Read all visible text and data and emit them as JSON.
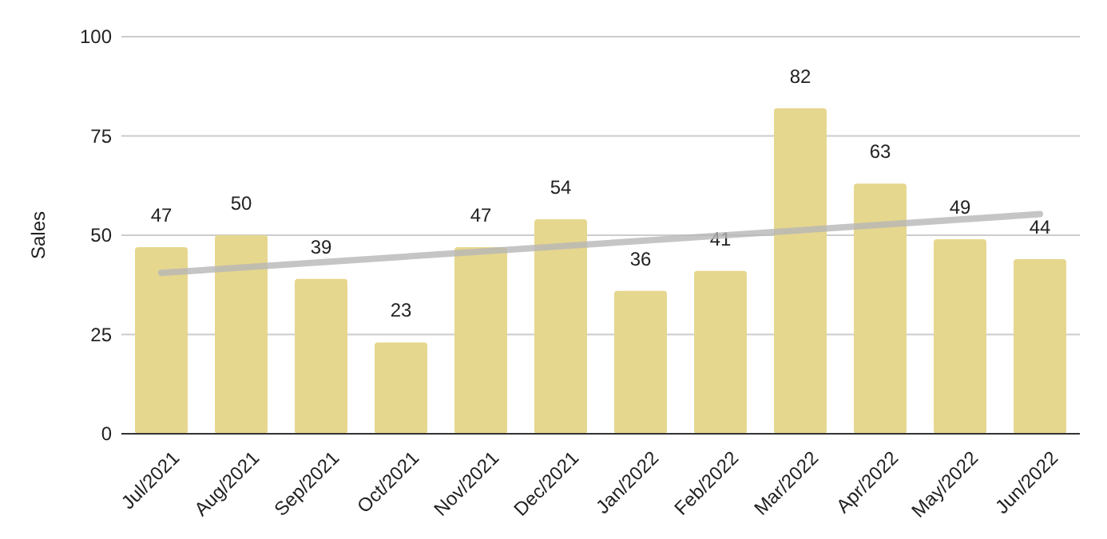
{
  "chart_data": {
    "type": "bar",
    "ylabel": "Sales",
    "categories": [
      "Jul/2021",
      "Aug/2021",
      "Sep/2021",
      "Oct/2021",
      "Nov/2021",
      "Dec/2021",
      "Jan/2022",
      "Feb/2022",
      "Mar/2022",
      "Apr/2022",
      "May/2022",
      "Jun/2022"
    ],
    "series": [
      {
        "color": "#e6d78f",
        "values": [
          47,
          50,
          39,
          23,
          47,
          54,
          36,
          41,
          82,
          63,
          49,
          44
        ],
        "value_labels": [
          "47",
          "50",
          "39",
          "23",
          "47",
          "54",
          "36",
          "41",
          "82",
          "63",
          "49",
          "44"
        ]
      },
      {
        "type": "line",
        "color": "#b7b7b7",
        "x": [
          "Jul/2021",
          "Jun/2022"
        ],
        "values": [
          40.5,
          55.3
        ]
      }
    ],
    "ylim": [
      0,
      100
    ],
    "yticks": [
      0,
      25,
      50,
      75,
      100
    ],
    "grid": "y"
  }
}
